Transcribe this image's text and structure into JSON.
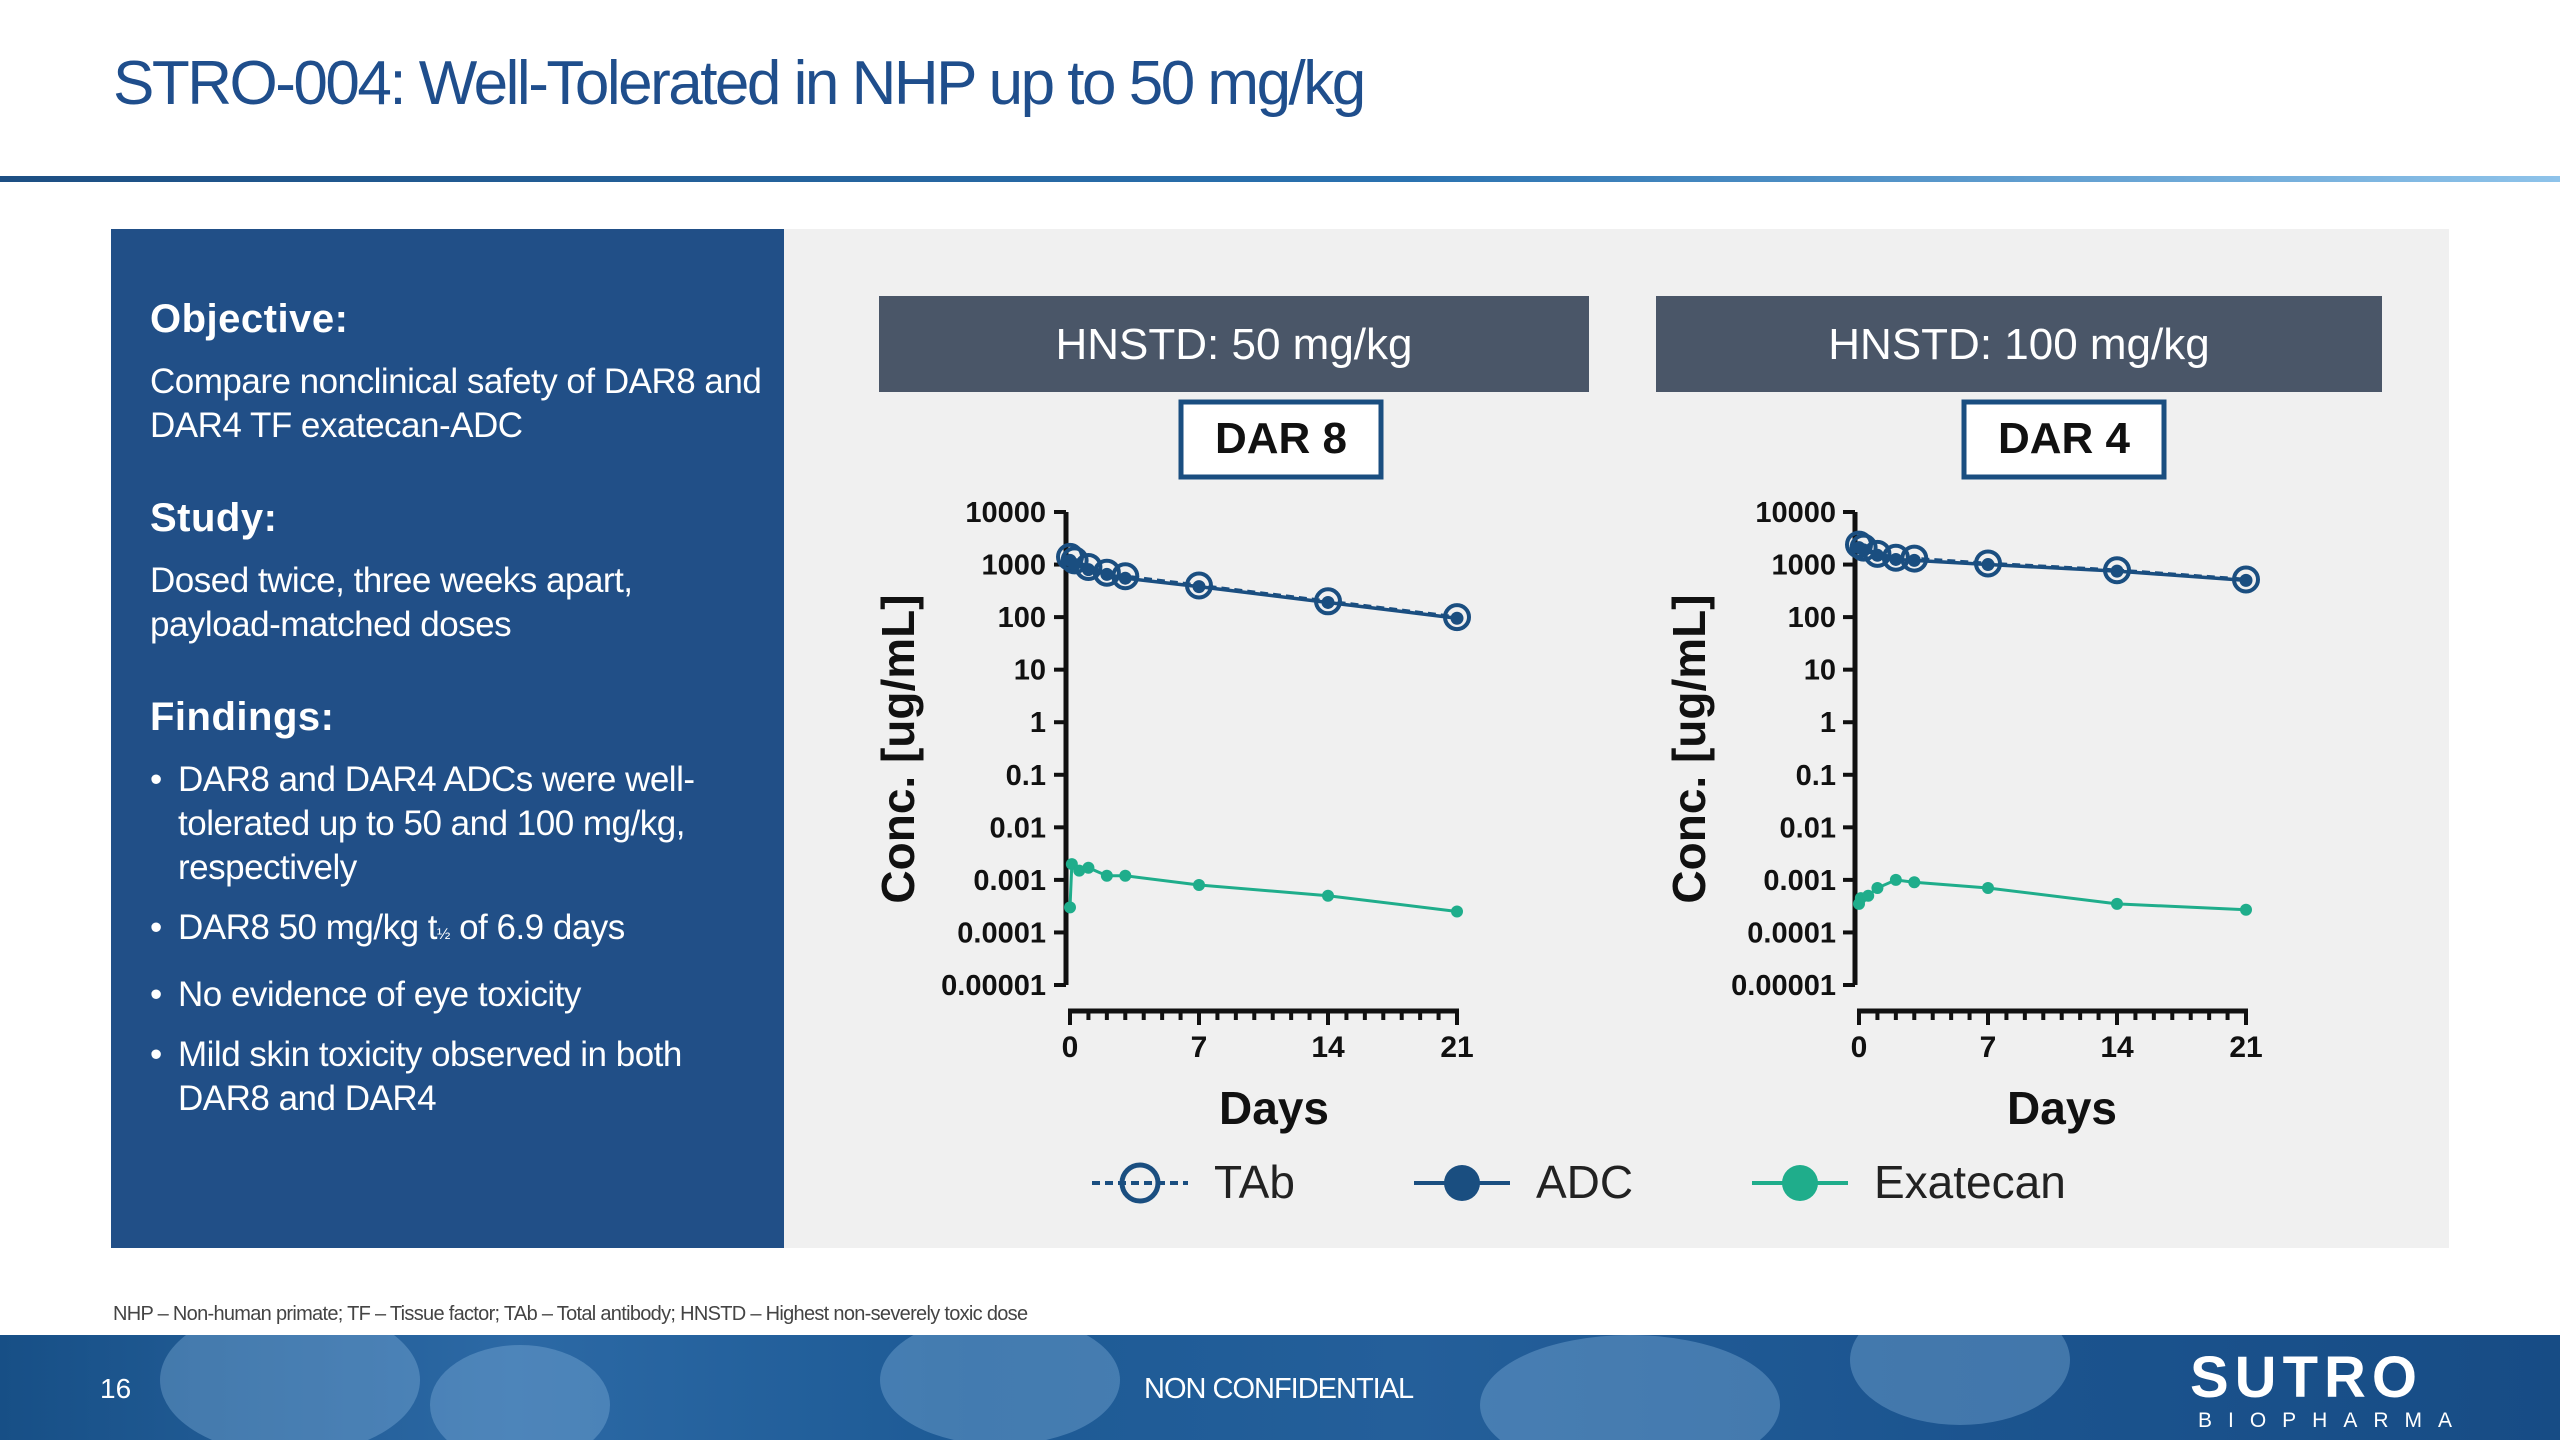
{
  "slide": {
    "title": "STRO-004: Well-Tolerated in NHP up to 50 mg/kg",
    "page_number": "16",
    "confidentiality": "NON CONFIDENTIAL",
    "footnote": "NHP – Non-human primate; TF – Tissue factor; TAb – Total antibody; HNSTD – Highest non-severely toxic dose",
    "logo": {
      "main": "SUTRO",
      "sub": "BIOPHARMA"
    }
  },
  "summary": {
    "objective_heading": "Objective:",
    "objective_text": "Compare nonclinical safety of DAR8 and DAR4 TF exatecan-ADC",
    "study_heading": "Study:",
    "study_text": "Dosed twice, three weeks apart, payload-matched doses",
    "findings_heading": "Findings:",
    "findings": [
      {
        "text": "DAR8 and DAR4 ADCs were well-tolerated up to 50 and 100 mg/kg, respectively"
      },
      {
        "pre": "DAR8 50 mg/kg t",
        "sub": "½",
        "post": " of 6.9 days"
      },
      {
        "text": "No evidence of eye toxicity"
      },
      {
        "text": "Mild skin toxicity observed in both DAR8 and DAR4"
      }
    ],
    "bullet_char": "•"
  },
  "colors": {
    "tab_adc": "#1a4e80",
    "exatecan": "#1fad8b",
    "header_box": "#4a5668",
    "title": "#1f4e8c"
  },
  "legend": [
    {
      "name": "TAb",
      "marker": "open-circle",
      "line": "dashed"
    },
    {
      "name": "ADC",
      "marker": "filled-circle",
      "line": "solid"
    },
    {
      "name": "Exatecan",
      "marker": "filled-circle",
      "line": "solid"
    }
  ],
  "chart_data": [
    {
      "type": "line",
      "header": "HNSTD: 50 mg/kg",
      "label": "DAR 8",
      "xlabel": "Days",
      "ylabel": "Conc. [ug/mL]",
      "yscale": "log",
      "ylim": [
        1e-05,
        10000
      ],
      "xlim": [
        0,
        21
      ],
      "xticks": [
        0,
        7,
        14,
        21
      ],
      "yticks": [
        "10000",
        "1000",
        "100",
        "10",
        "1",
        "0.1",
        "0.01",
        "0.001",
        "0.0001",
        "0.00001"
      ],
      "series": [
        {
          "name": "TAb",
          "x": [
            0,
            0.25,
            1,
            2,
            3,
            7,
            14,
            21
          ],
          "y": [
            1400,
            1200,
            900,
            700,
            600,
            400,
            200,
            100
          ]
        },
        {
          "name": "ADC",
          "x": [
            0,
            0.25,
            1,
            2,
            3,
            7,
            14,
            21
          ],
          "y": [
            1200,
            1000,
            800,
            650,
            550,
            380,
            190,
            95
          ]
        },
        {
          "name": "Exatecan",
          "x": [
            0,
            0.1,
            0.5,
            1,
            2,
            3,
            7,
            14,
            21
          ],
          "y": [
            0.0003,
            0.002,
            0.0015,
            0.0017,
            0.0012,
            0.0012,
            0.0008,
            0.0005,
            0.00025
          ]
        }
      ]
    },
    {
      "type": "line",
      "header": "HNSTD: 100 mg/kg",
      "label": "DAR 4",
      "xlabel": "Days",
      "ylabel": "Conc. [ug/mL]",
      "yscale": "log",
      "ylim": [
        1e-05,
        10000
      ],
      "xlim": [
        0,
        21
      ],
      "xticks": [
        0,
        7,
        14,
        21
      ],
      "yticks": [
        "10000",
        "1000",
        "100",
        "10",
        "1",
        "0.1",
        "0.01",
        "0.001",
        "0.0001",
        "0.00001"
      ],
      "series": [
        {
          "name": "TAb",
          "x": [
            0,
            0.25,
            1,
            2,
            3,
            7,
            14,
            21
          ],
          "y": [
            2400,
            2100,
            1600,
            1350,
            1300,
            1050,
            780,
            520
          ]
        },
        {
          "name": "ADC",
          "x": [
            0,
            0.25,
            1,
            2,
            3,
            7,
            14,
            21
          ],
          "y": [
            2100,
            1900,
            1500,
            1250,
            1200,
            1000,
            750,
            500
          ]
        },
        {
          "name": "Exatecan",
          "x": [
            0,
            0.1,
            0.5,
            1,
            2,
            3,
            7,
            14,
            21
          ],
          "y": [
            0.00035,
            0.00045,
            0.0005,
            0.0007,
            0.001,
            0.0009,
            0.0007,
            0.00035,
            0.00027
          ]
        }
      ]
    }
  ]
}
